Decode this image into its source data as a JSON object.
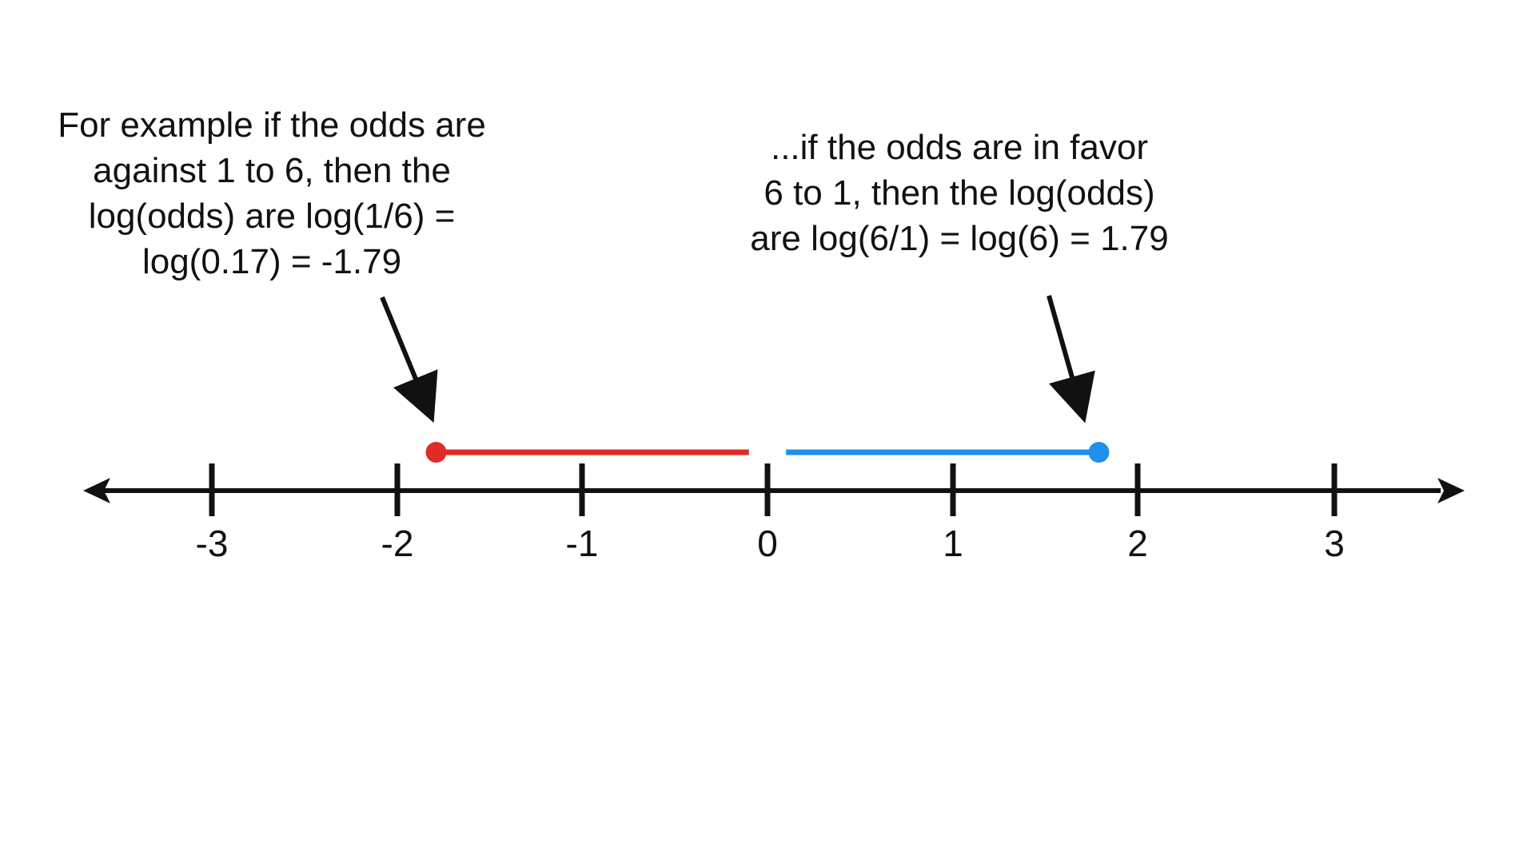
{
  "annotations": {
    "left": {
      "lines": [
        "For example if the odds are",
        "against 1 to 6, then the",
        "log(odds) are log(1/6) =",
        "log(0.17) = -1.79"
      ]
    },
    "right": {
      "lines": [
        "...if the odds are in favor",
        "6 to 1, then the log(odds)",
        "are log(6/1) = log(6) = 1.79"
      ]
    }
  },
  "number_line": {
    "ticks": [
      {
        "value": -3,
        "label": "-3"
      },
      {
        "value": -2,
        "label": "-2"
      },
      {
        "value": -1,
        "label": "-1"
      },
      {
        "value": 0,
        "label": "0"
      },
      {
        "value": 1,
        "label": "1"
      },
      {
        "value": 2,
        "label": "2"
      },
      {
        "value": 3,
        "label": "3"
      }
    ],
    "segments": [
      {
        "name": "against",
        "from": -1.79,
        "to": -0.1,
        "endpoint": -1.79,
        "color": "#e02b27"
      },
      {
        "name": "in-favor",
        "from": 0.1,
        "to": 1.79,
        "endpoint": 1.79,
        "color": "#1e90ee"
      }
    ],
    "axis_color": "#111111"
  }
}
